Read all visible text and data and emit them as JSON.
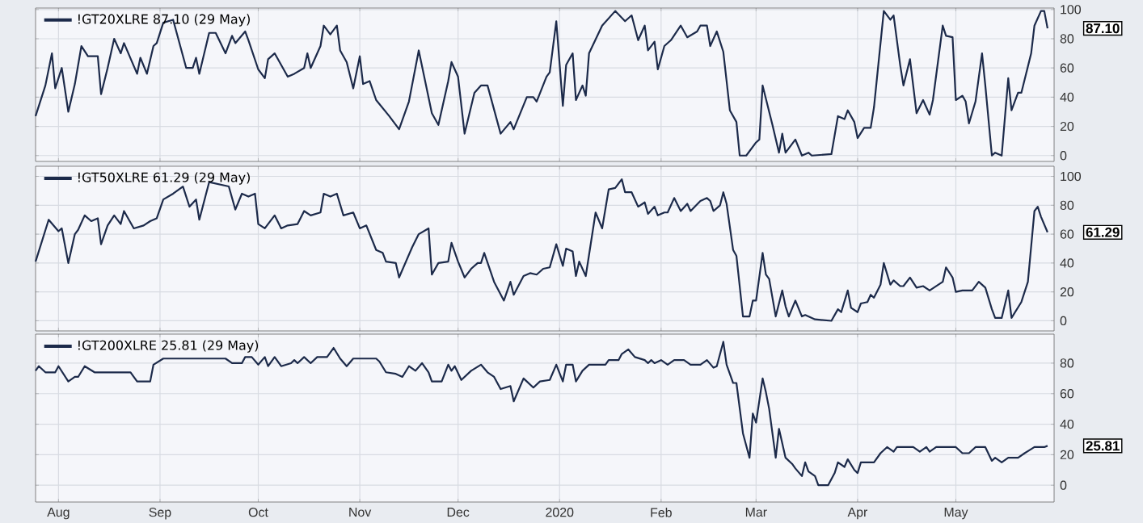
{
  "chart_data": [
    {
      "type": "line",
      "xlim": [
        "2019-07-25",
        "2020-05-31"
      ],
      "ylim": [
        -4,
        101
      ],
      "yticks": [
        0,
        20,
        40,
        60,
        80,
        100
      ],
      "grid": true,
      "legend": "top left",
      "tick_labels": "y",
      "xticks": [
        {
          "value": "2019-08-01",
          "label": null
        },
        {
          "value": "2019-09-01",
          "label": null
        },
        {
          "value": "2019-10-01",
          "label": null
        },
        {
          "value": "2019-11-01",
          "label": null
        },
        {
          "value": "2019-12-01",
          "label": null
        },
        {
          "value": "2020-01-01",
          "label": null
        },
        {
          "value": "2020-02-01",
          "label": null
        },
        {
          "value": "2020-03-01",
          "label": null
        },
        {
          "value": "2020-04-01",
          "label": null
        },
        {
          "value": "2020-05-01",
          "label": null
        }
      ],
      "annotations": [
        {
          "text": "87.10",
          "x": "2020-05-29",
          "y": 87.1
        }
      ],
      "series": [
        {
          "name": "!GT20XLRE 87.10 (29 May)",
          "color": "#1c2a4a",
          "x": [
            "2019-07-25",
            "2019-07-28",
            "2019-07-30",
            "2019-07-31",
            "2019-08-02",
            "2019-08-04",
            "2019-08-06",
            "2019-08-08",
            "2019-08-10",
            "2019-08-13",
            "2019-08-14",
            "2019-08-16",
            "2019-08-18",
            "2019-08-20",
            "2019-08-21",
            "2019-08-25",
            "2019-08-26",
            "2019-08-28",
            "2019-08-30",
            "2019-08-31",
            "2019-09-02",
            "2019-09-05",
            "2019-09-09",
            "2019-09-11",
            "2019-09-12",
            "2019-09-13",
            "2019-09-16",
            "2019-09-18",
            "2019-09-21",
            "2019-09-23",
            "2019-09-24",
            "2019-09-27",
            "2019-09-28",
            "2019-10-01",
            "2019-10-03",
            "2019-10-04",
            "2019-10-06",
            "2019-10-10",
            "2019-10-12",
            "2019-10-15",
            "2019-10-16",
            "2019-10-17",
            "2019-10-20",
            "2019-10-21",
            "2019-10-23",
            "2019-10-25",
            "2019-10-26",
            "2019-10-28",
            "2019-10-30",
            "2019-11-01",
            "2019-11-02",
            "2019-11-04",
            "2019-11-06",
            "2019-11-10",
            "2019-11-13",
            "2019-11-16",
            "2019-11-19",
            "2019-11-23",
            "2019-11-25",
            "2019-11-28",
            "2019-11-29",
            "2019-12-01",
            "2019-12-03",
            "2019-12-06",
            "2019-12-08",
            "2019-12-10",
            "2019-12-14",
            "2019-12-17",
            "2019-12-18",
            "2019-12-22",
            "2019-12-24",
            "2019-12-25",
            "2019-12-28",
            "2019-12-29",
            "2019-12-31",
            "2020-01-02",
            "2020-01-03",
            "2020-01-05",
            "2020-01-06",
            "2020-01-08",
            "2020-01-09",
            "2020-01-10",
            "2020-01-14",
            "2020-01-18",
            "2020-01-21",
            "2020-01-23",
            "2020-01-25",
            "2020-01-27",
            "2020-01-28",
            "2020-01-30",
            "2020-01-31",
            "2020-02-02",
            "2020-02-04",
            "2020-02-07",
            "2020-02-09",
            "2020-02-12",
            "2020-02-13",
            "2020-02-15",
            "2020-02-16",
            "2020-02-18",
            "2020-02-20",
            "2020-02-22",
            "2020-02-24",
            "2020-02-25",
            "2020-02-27",
            "2020-03-01",
            "2020-03-02",
            "2020-03-03",
            "2020-03-06",
            "2020-03-08",
            "2020-03-09",
            "2020-03-10",
            "2020-03-13",
            "2020-03-15",
            "2020-03-17",
            "2020-03-18",
            "2020-03-24",
            "2020-03-26",
            "2020-03-28",
            "2020-03-29",
            "2020-03-31",
            "2020-04-01",
            "2020-04-03",
            "2020-04-05",
            "2020-04-06",
            "2020-04-09",
            "2020-04-11",
            "2020-04-12",
            "2020-04-14",
            "2020-04-15",
            "2020-04-17",
            "2020-04-19",
            "2020-04-21",
            "2020-04-23",
            "2020-04-24",
            "2020-04-27",
            "2020-04-28",
            "2020-04-30",
            "2020-05-01",
            "2020-05-03",
            "2020-05-04",
            "2020-05-05",
            "2020-05-07",
            "2020-05-09",
            "2020-05-10",
            "2020-05-12",
            "2020-05-13",
            "2020-05-15",
            "2020-05-17",
            "2020-05-18",
            "2020-05-20",
            "2020-05-21",
            "2020-05-24",
            "2020-05-25",
            "2020-05-27",
            "2020-05-28",
            "2020-05-29"
          ],
          "values": [
            27,
            48,
            70,
            46,
            60,
            30,
            49,
            75,
            68,
            68,
            42,
            60,
            80,
            70,
            77,
            56,
            67,
            56,
            75,
            77,
            91,
            93,
            60,
            60,
            67,
            56,
            84,
            84,
            70,
            82,
            77,
            85,
            79,
            59,
            53,
            66,
            70,
            54,
            56,
            60,
            70,
            60,
            75,
            89,
            83,
            89,
            72,
            64,
            46,
            68,
            49,
            51,
            38,
            27,
            18,
            37,
            72,
            29,
            21,
            51,
            64,
            54,
            15,
            43,
            48,
            48,
            15,
            23,
            18,
            40,
            40,
            37,
            54,
            57,
            92,
            34,
            62,
            70,
            38,
            48,
            41,
            70,
            89,
            99,
            92,
            96,
            79,
            89,
            72,
            78,
            59,
            75,
            79,
            89,
            81,
            85,
            89,
            89,
            75,
            85,
            71,
            31,
            23,
            0,
            0,
            9,
            11,
            48,
            21,
            2,
            15,
            2,
            11,
            0,
            2,
            0,
            1,
            27,
            25,
            31,
            23,
            12,
            19,
            19,
            33,
            99,
            93,
            96,
            62,
            48,
            66,
            29,
            38,
            28,
            38,
            89,
            82,
            81,
            38,
            41,
            37,
            22,
            37,
            70,
            48,
            0,
            2,
            0,
            53,
            31,
            43,
            43,
            70,
            89,
            99,
            99,
            87.1
          ]
        }
      ]
    },
    {
      "type": "line",
      "xlim": [
        "2019-07-25",
        "2020-05-31"
      ],
      "ylim": [
        -7,
        107
      ],
      "yticks": [
        0,
        20,
        40,
        60,
        80,
        100
      ],
      "grid": true,
      "legend": "top left",
      "tick_labels": "y",
      "xticks": [
        {
          "value": "2019-08-01",
          "label": null
        },
        {
          "value": "2019-09-01",
          "label": null
        },
        {
          "value": "2019-10-01",
          "label": null
        },
        {
          "value": "2019-11-01",
          "label": null
        },
        {
          "value": "2019-12-01",
          "label": null
        },
        {
          "value": "2020-01-01",
          "label": null
        },
        {
          "value": "2020-02-01",
          "label": null
        },
        {
          "value": "2020-03-01",
          "label": null
        },
        {
          "value": "2020-04-01",
          "label": null
        },
        {
          "value": "2020-05-01",
          "label": null
        }
      ],
      "annotations": [
        {
          "text": "61.29",
          "x": "2020-05-29",
          "y": 61.29
        }
      ],
      "series": [
        {
          "name": "!GT50XLRE 61.29 (29 May)",
          "color": "#1c2a4a",
          "x": [
            "2019-07-25",
            "2019-07-29",
            "2019-08-01",
            "2019-08-02",
            "2019-08-04",
            "2019-08-06",
            "2019-08-07",
            "2019-08-09",
            "2019-08-11",
            "2019-08-13",
            "2019-08-14",
            "2019-08-16",
            "2019-08-18",
            "2019-08-20",
            "2019-08-21",
            "2019-08-24",
            "2019-08-27",
            "2019-08-29",
            "2019-08-31",
            "2019-09-02",
            "2019-09-05",
            "2019-09-08",
            "2019-09-10",
            "2019-09-12",
            "2019-09-13",
            "2019-09-16",
            "2019-09-22",
            "2019-09-24",
            "2019-09-26",
            "2019-09-28",
            "2019-09-30",
            "2019-10-01",
            "2019-10-03",
            "2019-10-06",
            "2019-10-08",
            "2019-10-10",
            "2019-10-13",
            "2019-10-15",
            "2019-10-17",
            "2019-10-20",
            "2019-10-21",
            "2019-10-23",
            "2019-10-25",
            "2019-10-27",
            "2019-10-30",
            "2019-11-01",
            "2019-11-03",
            "2019-11-06",
            "2019-11-08",
            "2019-11-09",
            "2019-11-12",
            "2019-11-13",
            "2019-11-17",
            "2019-11-19",
            "2019-11-22",
            "2019-11-23",
            "2019-11-25",
            "2019-11-28",
            "2019-11-29",
            "2019-12-01",
            "2019-12-03",
            "2019-12-05",
            "2019-12-07",
            "2019-12-08",
            "2019-12-09",
            "2019-12-12",
            "2019-12-15",
            "2019-12-17",
            "2019-12-18",
            "2019-12-21",
            "2019-12-23",
            "2019-12-25",
            "2019-12-27",
            "2019-12-29",
            "2019-12-31",
            "2020-01-02",
            "2020-01-03",
            "2020-01-05",
            "2020-01-06",
            "2020-01-07",
            "2020-01-09",
            "2020-01-12",
            "2020-01-14",
            "2020-01-16",
            "2020-01-18",
            "2020-01-20",
            "2020-01-21",
            "2020-01-23",
            "2020-01-25",
            "2020-01-27",
            "2020-01-28",
            "2020-01-30",
            "2020-01-31",
            "2020-02-02",
            "2020-02-03",
            "2020-02-05",
            "2020-02-07",
            "2020-02-09",
            "2020-02-10",
            "2020-02-13",
            "2020-02-15",
            "2020-02-16",
            "2020-02-17",
            "2020-02-19",
            "2020-02-20",
            "2020-02-21",
            "2020-02-23",
            "2020-02-24",
            "2020-02-26",
            "2020-02-28",
            "2020-02-29",
            "2020-03-01",
            "2020-03-03",
            "2020-03-04",
            "2020-03-05",
            "2020-03-07",
            "2020-03-09",
            "2020-03-10",
            "2020-03-11",
            "2020-03-13",
            "2020-03-15",
            "2020-03-16",
            "2020-03-19",
            "2020-03-24",
            "2020-03-26",
            "2020-03-27",
            "2020-03-29",
            "2020-03-30",
            "2020-04-01",
            "2020-04-02",
            "2020-04-04",
            "2020-04-05",
            "2020-04-06",
            "2020-04-08",
            "2020-04-09",
            "2020-04-11",
            "2020-04-12",
            "2020-04-14",
            "2020-04-15",
            "2020-04-17",
            "2020-04-19",
            "2020-04-21",
            "2020-04-23",
            "2020-04-25",
            "2020-04-27",
            "2020-04-28",
            "2020-04-30",
            "2020-05-01",
            "2020-05-03",
            "2020-05-06",
            "2020-05-08",
            "2020-05-10",
            "2020-05-12",
            "2020-05-13",
            "2020-05-15",
            "2020-05-17",
            "2020-05-18",
            "2020-05-21",
            "2020-05-23",
            "2020-05-25",
            "2020-05-26",
            "2020-05-27",
            "2020-05-29"
          ],
          "values": [
            41,
            70,
            62,
            64,
            40,
            60,
            63,
            73,
            69,
            71,
            53,
            66,
            73,
            67,
            76,
            64,
            66,
            69,
            71,
            84,
            88,
            93,
            79,
            84,
            70,
            96,
            93,
            77,
            88,
            86,
            88,
            67,
            64,
            73,
            64,
            66,
            67,
            76,
            73,
            75,
            88,
            86,
            88,
            73,
            75,
            64,
            66,
            49,
            47,
            41,
            40,
            30,
            51,
            60,
            64,
            32,
            40,
            41,
            54,
            41,
            30,
            36,
            40,
            40,
            47,
            27,
            14,
            27,
            18,
            31,
            33,
            32,
            36,
            37,
            53,
            38,
            50,
            48,
            31,
            41,
            31,
            75,
            64,
            91,
            92,
            98,
            89,
            89,
            79,
            82,
            74,
            79,
            73,
            75,
            75,
            85,
            76,
            81,
            76,
            83,
            85,
            83,
            76,
            80,
            89,
            81,
            49,
            45,
            3,
            3,
            14,
            14,
            47,
            32,
            29,
            3,
            21,
            10,
            3,
            14,
            3,
            4,
            1,
            0,
            8,
            6,
            21,
            9,
            6,
            12,
            13,
            18,
            16,
            25,
            40,
            25,
            28,
            24,
            24,
            30,
            23,
            24,
            21,
            24,
            27,
            37,
            30,
            20,
            21,
            21,
            27,
            23,
            8,
            2,
            2,
            21,
            2,
            13,
            27,
            76,
            79,
            72,
            61.29
          ]
        }
      ]
    },
    {
      "type": "line",
      "xlim": [
        "2019-07-25",
        "2020-05-31"
      ],
      "ylim": [
        -11,
        99
      ],
      "yticks": [
        0,
        20,
        40,
        60,
        80
      ],
      "grid": true,
      "legend": "top left",
      "xticks": [
        {
          "value": "2019-08-01",
          "label": "Aug"
        },
        {
          "value": "2019-09-01",
          "label": "Sep"
        },
        {
          "value": "2019-10-01",
          "label": "Oct"
        },
        {
          "value": "2019-11-01",
          "label": "Nov"
        },
        {
          "value": "2019-12-01",
          "label": "Dec"
        },
        {
          "value": "2020-01-01",
          "label": "2020"
        },
        {
          "value": "2020-02-01",
          "label": "Feb"
        },
        {
          "value": "2020-03-01",
          "label": "Mar"
        },
        {
          "value": "2020-04-01",
          "label": "Apr"
        },
        {
          "value": "2020-05-01",
          "label": "May"
        }
      ],
      "annotations": [
        {
          "text": "25.81",
          "x": "2020-05-29",
          "y": 25.81
        }
      ],
      "series": [
        {
          "name": "!GT200XLRE 25.81 (29 May)",
          "color": "#1c2a4a",
          "x": [
            "2019-07-25",
            "2019-07-26",
            "2019-07-28",
            "2019-07-31",
            "2019-08-01",
            "2019-08-04",
            "2019-08-06",
            "2019-08-07",
            "2019-08-09",
            "2019-08-12",
            "2019-08-23",
            "2019-08-25",
            "2019-08-29",
            "2019-08-30",
            "2019-09-02",
            "2019-09-21",
            "2019-09-23",
            "2019-09-26",
            "2019-09-27",
            "2019-09-29",
            "2019-10-01",
            "2019-10-03",
            "2019-10-04",
            "2019-10-06",
            "2019-10-08",
            "2019-10-11",
            "2019-10-12",
            "2019-10-13",
            "2019-10-15",
            "2019-10-17",
            "2019-10-19",
            "2019-10-22",
            "2019-10-24",
            "2019-10-26",
            "2019-10-28",
            "2019-10-30",
            "2019-11-06",
            "2019-11-07",
            "2019-11-09",
            "2019-11-12",
            "2019-11-14",
            "2019-11-16",
            "2019-11-18",
            "2019-11-20",
            "2019-11-22",
            "2019-11-23",
            "2019-11-26",
            "2019-11-28",
            "2019-11-29",
            "2019-11-30",
            "2019-12-02",
            "2019-12-05",
            "2019-12-08",
            "2019-12-10",
            "2019-12-12",
            "2019-12-14",
            "2019-12-17",
            "2019-12-18",
            "2019-12-21",
            "2019-12-22",
            "2019-12-24",
            "2019-12-26",
            "2019-12-29",
            "2019-12-31",
            "2020-01-02",
            "2020-01-03",
            "2020-01-05",
            "2020-01-06",
            "2020-01-08",
            "2020-01-10",
            "2020-01-15",
            "2020-01-16",
            "2020-01-19",
            "2020-01-20",
            "2020-01-22",
            "2020-01-24",
            "2020-01-27",
            "2020-01-28",
            "2020-01-29",
            "2020-01-30",
            "2020-02-01",
            "2020-02-03",
            "2020-02-05",
            "2020-02-08",
            "2020-02-10",
            "2020-02-13",
            "2020-02-15",
            "2020-02-17",
            "2020-02-18",
            "2020-02-20",
            "2020-02-21",
            "2020-02-23",
            "2020-02-24",
            "2020-02-26",
            "2020-02-28",
            "2020-02-29",
            "2020-03-01",
            "2020-03-03",
            "2020-03-04",
            "2020-03-05",
            "2020-03-07",
            "2020-03-08",
            "2020-03-10",
            "2020-03-12",
            "2020-03-13",
            "2020-03-15",
            "2020-03-16",
            "2020-03-17",
            "2020-03-19",
            "2020-03-20",
            "2020-03-23",
            "2020-03-25",
            "2020-03-26",
            "2020-03-28",
            "2020-03-29",
            "2020-03-31",
            "2020-04-01",
            "2020-04-02",
            "2020-04-06",
            "2020-04-08",
            "2020-04-10",
            "2020-04-12",
            "2020-04-13",
            "2020-04-18",
            "2020-04-20",
            "2020-04-22",
            "2020-04-23",
            "2020-04-25",
            "2020-05-01",
            "2020-05-03",
            "2020-05-05",
            "2020-05-07",
            "2020-05-10",
            "2020-05-12",
            "2020-05-13",
            "2020-05-15",
            "2020-05-17",
            "2020-05-20",
            "2020-05-22",
            "2020-05-25",
            "2020-05-28",
            "2020-05-29"
          ],
          "values": [
            75,
            78,
            74,
            74,
            78,
            68,
            71,
            71,
            78,
            74,
            74,
            68,
            68,
            79,
            83,
            83,
            80,
            80,
            84,
            84,
            79,
            84,
            78,
            84,
            78,
            80,
            82,
            80,
            84,
            80,
            84,
            84,
            90,
            83,
            78,
            83,
            83,
            81,
            74,
            73,
            71,
            78,
            75,
            80,
            74,
            68,
            68,
            79,
            75,
            78,
            69,
            75,
            79,
            74,
            71,
            63,
            65,
            55,
            70,
            68,
            64,
            68,
            69,
            79,
            68,
            79,
            79,
            68,
            75,
            79,
            79,
            82,
            82,
            86,
            89,
            84,
            82,
            80,
            82,
            80,
            82,
            79,
            82,
            82,
            79,
            79,
            82,
            77,
            78,
            94,
            79,
            67,
            67,
            34,
            18,
            47,
            41,
            70,
            61,
            50,
            18,
            37,
            18,
            14,
            11,
            6,
            15,
            9,
            6,
            0,
            0,
            8,
            15,
            12,
            17,
            10,
            8,
            15,
            15,
            21,
            25,
            22,
            25,
            25,
            22,
            25,
            22,
            25,
            25,
            21,
            21,
            25,
            25,
            16,
            18,
            15,
            18,
            18,
            21,
            25,
            25,
            25.81
          ]
        }
      ]
    }
  ]
}
